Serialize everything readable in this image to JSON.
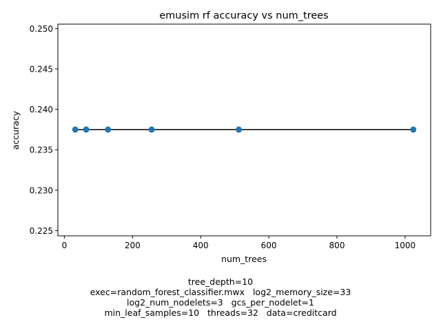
{
  "chart_data": {
    "type": "line",
    "title": "emusim rf accuracy vs num_trees",
    "xlabel": "num_trees",
    "ylabel": "accuracy",
    "x": [
      32,
      64,
      128,
      256,
      512,
      1024
    ],
    "series": [
      {
        "name": "accuracy",
        "values": [
          0.2375,
          0.2375,
          0.2375,
          0.2375,
          0.2375,
          0.2375
        ]
      }
    ],
    "xlim": [
      -19,
      1075
    ],
    "ylim": [
      0.22435,
      0.25055
    ],
    "xticks": [
      0,
      200,
      400,
      600,
      800,
      1000
    ],
    "xtick_labels": [
      "0",
      "200",
      "400",
      "600",
      "800",
      "1000"
    ],
    "yticks": [
      0.225,
      0.23,
      0.235,
      0.24,
      0.245,
      0.25
    ],
    "ytick_labels": [
      "0.225",
      "0.230",
      "0.235",
      "0.240",
      "0.245",
      "0.250"
    ],
    "grid": false,
    "line_color": "#000000",
    "marker_color": "#1f77b4"
  },
  "caption": {
    "line1": "tree_depth=10",
    "line2": "exec=random_forest_classifier.mwx   log2_memory_size=33",
    "line3": "log2_num_nodelets=3   gcs_per_nodelet=1",
    "line4": "min_leaf_samples=10   threads=32   data=creditcard"
  }
}
